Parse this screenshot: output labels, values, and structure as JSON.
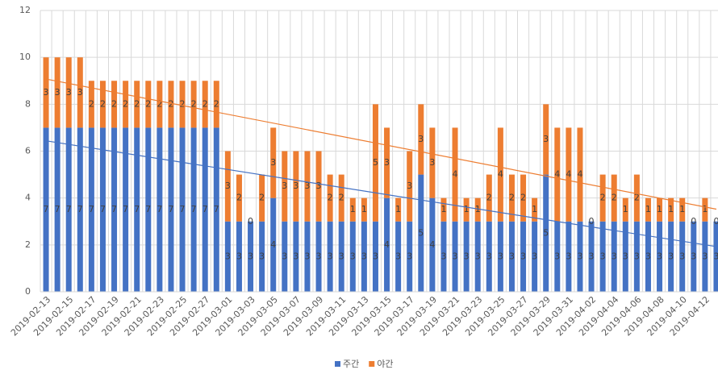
{
  "chart_data": {
    "type": "bar",
    "stacked": true,
    "categories": [
      "2019-02-13",
      null,
      "2019-02-15",
      null,
      "2019-02-17",
      null,
      "2019-02-19",
      null,
      "2019-02-21",
      null,
      "2019-02-23",
      null,
      "2019-02-25",
      null,
      "2019-02-27",
      null,
      "2019-03-01",
      null,
      "2019-03-03",
      null,
      "2019-03-05",
      null,
      "2019-03-07",
      null,
      "2019-03-09",
      null,
      "2019-03-11",
      null,
      "2019-03-13",
      null,
      "2019-03-15",
      null,
      "2019-03-17",
      null,
      "2019-03-19",
      null,
      "2019-03-21",
      null,
      "2019-03-23",
      null,
      "2019-03-25",
      null,
      "2019-03-27",
      null,
      "2019-03-29",
      null,
      "2019-03-31",
      null,
      "2019-04-02",
      null,
      "2019-04-04",
      null,
      "2019-04-06",
      null,
      "2019-04-08",
      null,
      "2019-04-10",
      null,
      "2019-04-12",
      null
    ],
    "series": [
      {
        "name": "주간",
        "color": "#4472c4",
        "values": [
          7,
          7,
          7,
          7,
          7,
          7,
          7,
          7,
          7,
          7,
          7,
          7,
          7,
          7,
          7,
          7,
          3,
          3,
          3,
          3,
          4,
          3,
          3,
          3,
          3,
          3,
          3,
          3,
          3,
          3,
          4,
          3,
          3,
          5,
          4,
          3,
          3,
          3,
          3,
          3,
          3,
          3,
          3,
          3,
          5,
          3,
          3,
          3,
          3,
          3,
          3,
          3,
          3,
          3,
          3,
          3,
          3,
          3,
          3,
          3
        ]
      },
      {
        "name": "야간",
        "color": "#ed7d31",
        "values": [
          3,
          3,
          3,
          3,
          2,
          2,
          2,
          2,
          2,
          2,
          2,
          2,
          2,
          2,
          2,
          2,
          3,
          2,
          0,
          2,
          3,
          3,
          3,
          3,
          3,
          2,
          2,
          1,
          1,
          5,
          3,
          1,
          3,
          3,
          3,
          1,
          4,
          1,
          1,
          2,
          4,
          2,
          2,
          1,
          3,
          4,
          4,
          4,
          0,
          2,
          2,
          1,
          2,
          1,
          1,
          1,
          1,
          0,
          1,
          0
        ]
      }
    ],
    "ylim": [
      0,
      12
    ],
    "yticks": [
      0,
      2,
      4,
      6,
      8,
      10,
      12
    ],
    "grid": true,
    "trendline": true,
    "legend": "bottom"
  }
}
